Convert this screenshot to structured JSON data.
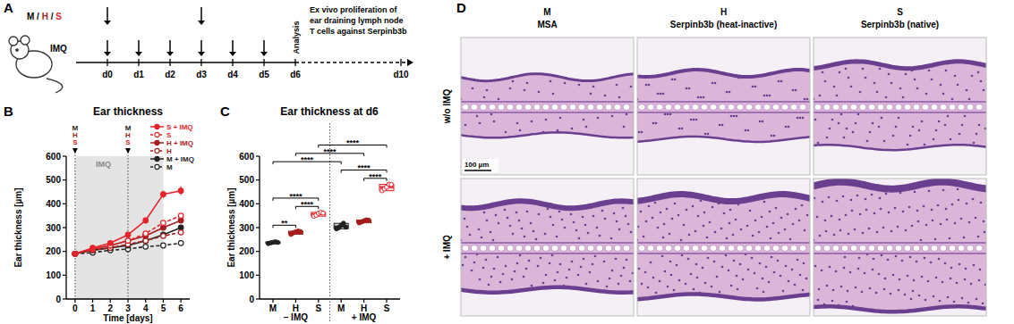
{
  "panel_labels": [
    "A",
    "B",
    "C",
    "D"
  ],
  "schematic": {
    "groups": [
      {
        "label": "M",
        "color": "#000000"
      },
      {
        "label": "H",
        "color": "#a61c1c"
      },
      {
        "label": "S",
        "color": "#e3242b"
      }
    ],
    "separator": "/",
    "treatment": "IMQ",
    "days": [
      "d0",
      "d1",
      "d2",
      "d3",
      "d4",
      "d5",
      "d6",
      "d10"
    ],
    "injection_days": [
      "d0",
      "d3"
    ],
    "treatment_days": [
      "d0",
      "d1",
      "d2",
      "d3",
      "d4",
      "d5"
    ],
    "analysis": "Analysis",
    "analysis_day": "d6",
    "ex_vivo": [
      "Ex vivo proliferation of",
      "ear draining lymph node",
      "T cells against Serpinb3b"
    ]
  },
  "chart_data": [
    {
      "type": "line",
      "title": "Ear thickness",
      "x_label": "Time [days]",
      "y_label": "Ear thickness [µm]",
      "x": [
        0,
        1,
        2,
        3,
        4,
        5,
        6
      ],
      "xlim": [
        -0.5,
        6.5
      ],
      "xticks": [
        0,
        1,
        2,
        3,
        4,
        5,
        6
      ],
      "ylim": [
        0,
        600
      ],
      "yticks": [
        0,
        100,
        200,
        300,
        400,
        500,
        600
      ],
      "legend": "top-right",
      "imq_period": {
        "from": 0,
        "to": 5,
        "label": "IMQ"
      },
      "injections": {
        "x": [
          0,
          3
        ],
        "labels": [
          "M",
          "H",
          "S"
        ]
      },
      "series": [
        {
          "name": "S + IMQ",
          "color": "#e3242b",
          "marker": "filled",
          "line_style": "solid",
          "values": [
            190,
            215,
            235,
            270,
            330,
            440,
            455
          ],
          "errors": [
            3,
            5,
            6,
            10,
            12,
            15,
            18
          ]
        },
        {
          "name": "S",
          "color": "#e3242b",
          "marker": "open",
          "line_style": "dashed",
          "values": [
            190,
            210,
            225,
            245,
            275,
            320,
            350
          ],
          "errors": [
            3,
            4,
            5,
            6,
            8,
            10,
            10
          ]
        },
        {
          "name": "H + IMQ",
          "color": "#a61c1c",
          "marker": "filled",
          "line_style": "solid",
          "values": [
            190,
            210,
            225,
            245,
            265,
            300,
            330
          ],
          "errors": [
            3,
            4,
            4,
            5,
            6,
            7,
            8
          ]
        },
        {
          "name": "H",
          "color": "#a61c1c",
          "marker": "open",
          "line_style": "dashed",
          "values": [
            190,
            205,
            215,
            230,
            245,
            265,
            280
          ],
          "errors": [
            3,
            3,
            4,
            4,
            5,
            5,
            5
          ]
        },
        {
          "name": "M + IMQ",
          "color": "#222222",
          "marker": "filled",
          "line_style": "solid",
          "values": [
            190,
            205,
            215,
            225,
            245,
            270,
            300
          ],
          "errors": [
            3,
            3,
            4,
            4,
            5,
            7,
            10
          ]
        },
        {
          "name": "M",
          "color": "#222222",
          "marker": "open",
          "line_style": "dashed",
          "values": [
            190,
            195,
            205,
            210,
            220,
            225,
            235
          ],
          "errors": [
            3,
            3,
            3,
            3,
            3,
            4,
            4
          ]
        }
      ]
    },
    {
      "type": "dot",
      "title": "Ear thickness at d6",
      "y_label": "Ear thickness [µm]",
      "categories": [
        "M",
        "H",
        "S",
        "M",
        "H",
        "S"
      ],
      "colors": [
        "#222222",
        "#a61c1c",
        "#e3242b",
        "#222222",
        "#a61c1c",
        "#e3242b"
      ],
      "groups": [
        {
          "label": "– IMQ",
          "from": 0,
          "to": 2
        },
        {
          "label": "+ IMQ",
          "from": 3,
          "to": 5
        }
      ],
      "ylim": [
        0,
        600
      ],
      "yticks": [
        0,
        100,
        200,
        300,
        400,
        500,
        600
      ],
      "values": [
        237,
        280,
        357,
        305,
        327,
        470
      ],
      "points": [
        [
          233,
          236,
          238,
          240,
          238
        ],
        [
          272,
          278,
          282,
          285,
          283
        ],
        [
          348,
          352,
          360,
          364,
          361
        ],
        [
          295,
          300,
          310,
          318,
          302
        ],
        [
          320,
          324,
          328,
          332,
          331
        ],
        [
          455,
          462,
          470,
          482,
          481
        ]
      ],
      "comparisons": [
        {
          "from": 0,
          "to": 1,
          "label": "**"
        },
        {
          "from": 1,
          "to": 2,
          "label": "****"
        },
        {
          "from": 0,
          "to": 2,
          "label": "****"
        },
        {
          "from": 4,
          "to": 5,
          "label": "****"
        },
        {
          "from": 3,
          "to": 5,
          "label": "****"
        },
        {
          "from": 0,
          "to": 3,
          "label": "****"
        },
        {
          "from": 1,
          "to": 4,
          "label": "****"
        },
        {
          "from": 2,
          "to": 5,
          "label": "****"
        }
      ]
    }
  ],
  "histology": {
    "columns": [
      {
        "code": "M",
        "name": "MSA"
      },
      {
        "code": "H",
        "name": "Serpinb3b (heat-inactive)"
      },
      {
        "code": "S",
        "name": "Serpinb3b (native)"
      }
    ],
    "rows": [
      "w/o IMQ",
      "+ IMQ"
    ],
    "scale_bar": "100 µm"
  }
}
